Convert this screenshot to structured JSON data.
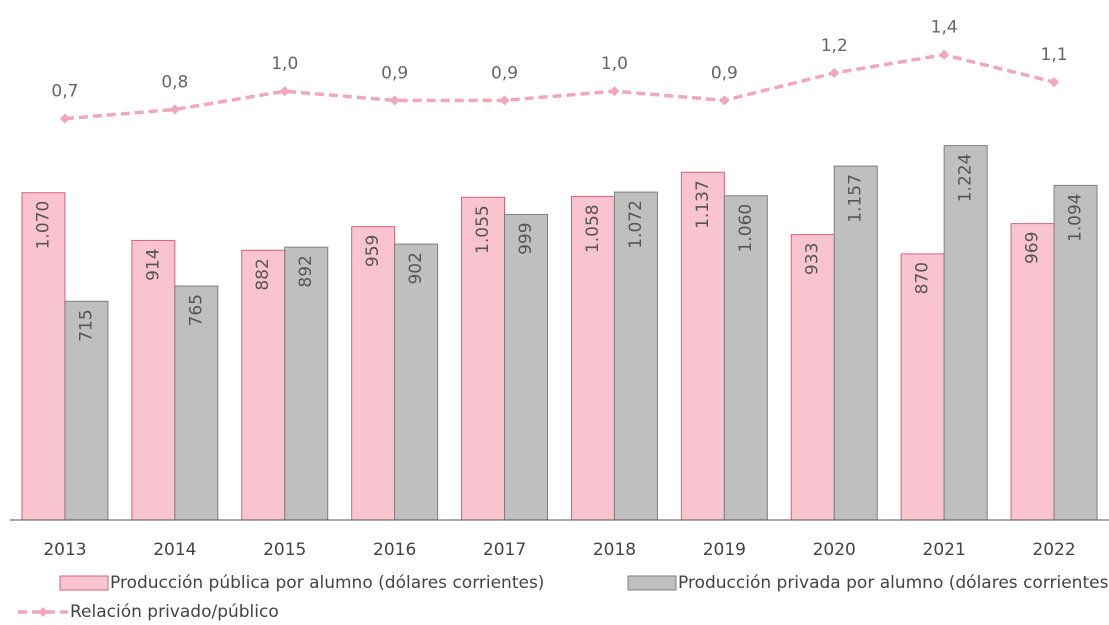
{
  "chart_data": {
    "type": "bar",
    "categories": [
      "2013",
      "2014",
      "2015",
      "2016",
      "2017",
      "2018",
      "2019",
      "2020",
      "2021",
      "2022"
    ],
    "ylim": [
      0,
      1700
    ],
    "y2lim": [
      -3.7,
      2.0
    ],
    "legend": "bottom",
    "series": [
      {
        "name": "Producción pública por alumno (dólares corrientes)",
        "color": "#f9c3cf",
        "edge": "#d8607c",
        "values": [
          1070,
          914,
          882,
          959,
          1055,
          1058,
          1137,
          933,
          870,
          969
        ],
        "value_labels": [
          "1.070",
          "914",
          "882",
          "959",
          "1.055",
          "1.058",
          "1.137",
          "933",
          "870",
          "969"
        ]
      },
      {
        "name": "Producción privada por alumno (dólares corrientes)",
        "color": "#bfbfbf",
        "edge": "#7f7f7f",
        "values": [
          715,
          765,
          892,
          902,
          999,
          1072,
          1060,
          1157,
          1224,
          1094
        ],
        "value_labels": [
          "715",
          "765",
          "892",
          "902",
          "999",
          "1.072",
          "1.060",
          "1.157",
          "1.224",
          "1.094"
        ]
      },
      {
        "name": "Relación privado/público",
        "type": "line",
        "axis": "y2",
        "color": "#f2a7b9",
        "values": [
          0.7,
          0.8,
          1.0,
          0.9,
          0.9,
          1.0,
          0.9,
          1.2,
          1.4,
          1.1
        ],
        "value_labels": [
          "0,7",
          "0,8",
          "1,0",
          "0,9",
          "0,9",
          "1,0",
          "0,9",
          "1,2",
          "1,4",
          "1,1"
        ]
      }
    ]
  }
}
